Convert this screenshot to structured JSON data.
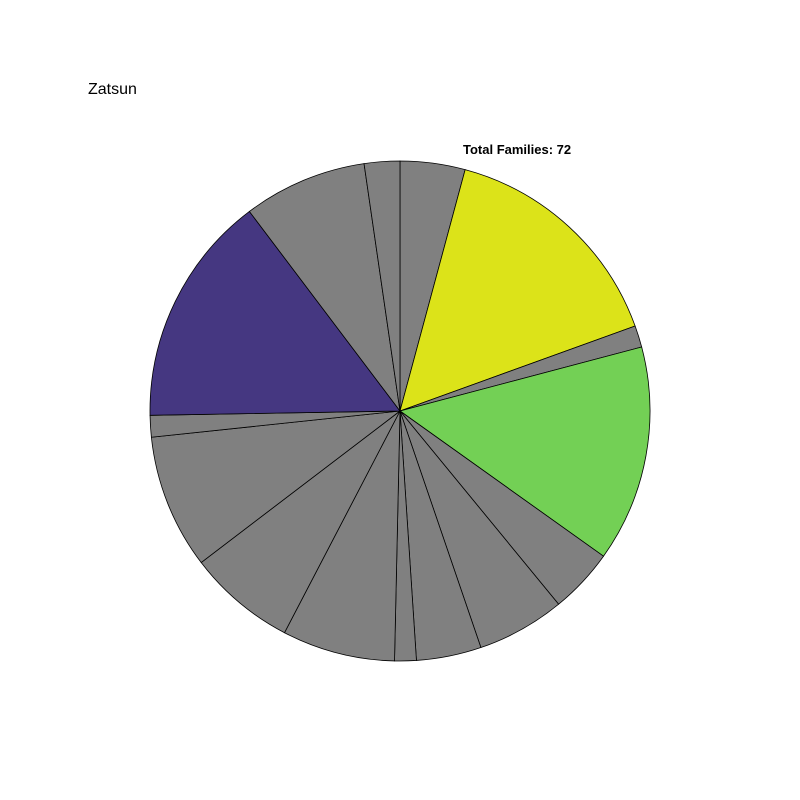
{
  "chart_data": {
    "type": "pie",
    "title": "Zatsun",
    "subtitle": "Total Families: 72",
    "start": "12 o'clock",
    "direction": "clockwise",
    "slices": [
      {
        "value": 4.2,
        "color": "#808080"
      },
      {
        "value": 15.3,
        "color": "#DCE319"
      },
      {
        "value": 1.4,
        "color": "#808080"
      },
      {
        "value": 14.0,
        "color": "#73D055"
      },
      {
        "value": 4.2,
        "color": "#808080"
      },
      {
        "value": 5.7,
        "color": "#808080"
      },
      {
        "value": 4.2,
        "color": "#808080"
      },
      {
        "value": 1.4,
        "color": "#808080"
      },
      {
        "value": 7.3,
        "color": "#808080"
      },
      {
        "value": 7.0,
        "color": "#808080"
      },
      {
        "value": 8.7,
        "color": "#808080"
      },
      {
        "value": 1.4,
        "color": "#808080"
      },
      {
        "value": 15.0,
        "color": "#453781"
      },
      {
        "value": 8.0,
        "color": "#808080"
      },
      {
        "value": 2.3,
        "color": "#808080"
      }
    ]
  }
}
